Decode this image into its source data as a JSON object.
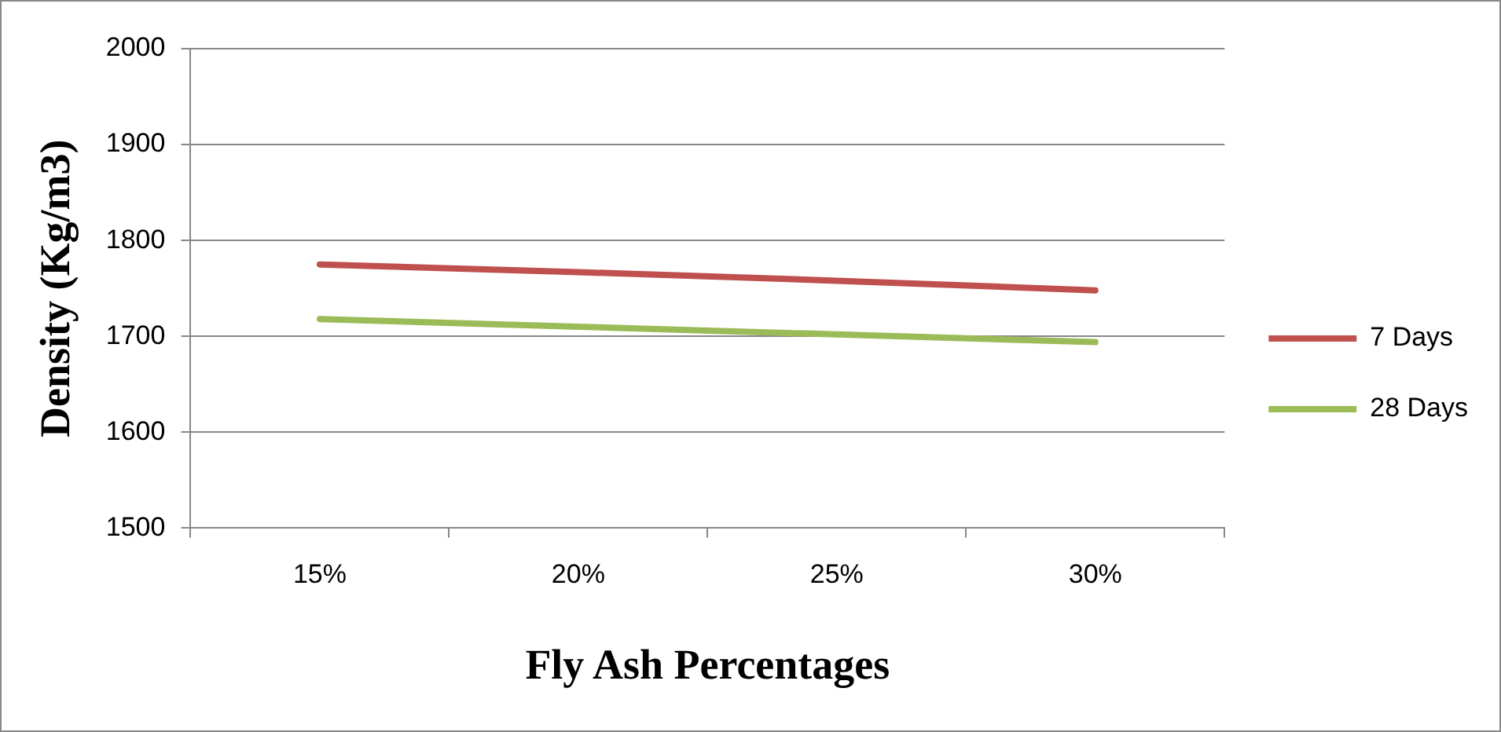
{
  "chart_data": {
    "type": "line",
    "xlabel": "Fly Ash Percentages",
    "ylabel": "Density (Kg/m3)",
    "categories": [
      "15%",
      "20%",
      "25%",
      "30%"
    ],
    "series": [
      {
        "name": "7 Days",
        "color": "#c0504d",
        "values": [
          1775,
          1767,
          1758,
          1748
        ]
      },
      {
        "name": "28 Days",
        "color": "#9bbb59",
        "values": [
          1718,
          1710,
          1702,
          1694
        ]
      }
    ],
    "ylim": [
      1500,
      2000
    ],
    "yticks": [
      1500,
      1600,
      1700,
      1800,
      1900,
      2000
    ],
    "grid": "y",
    "legend": "right",
    "marker": "none",
    "line_style": "solid"
  }
}
